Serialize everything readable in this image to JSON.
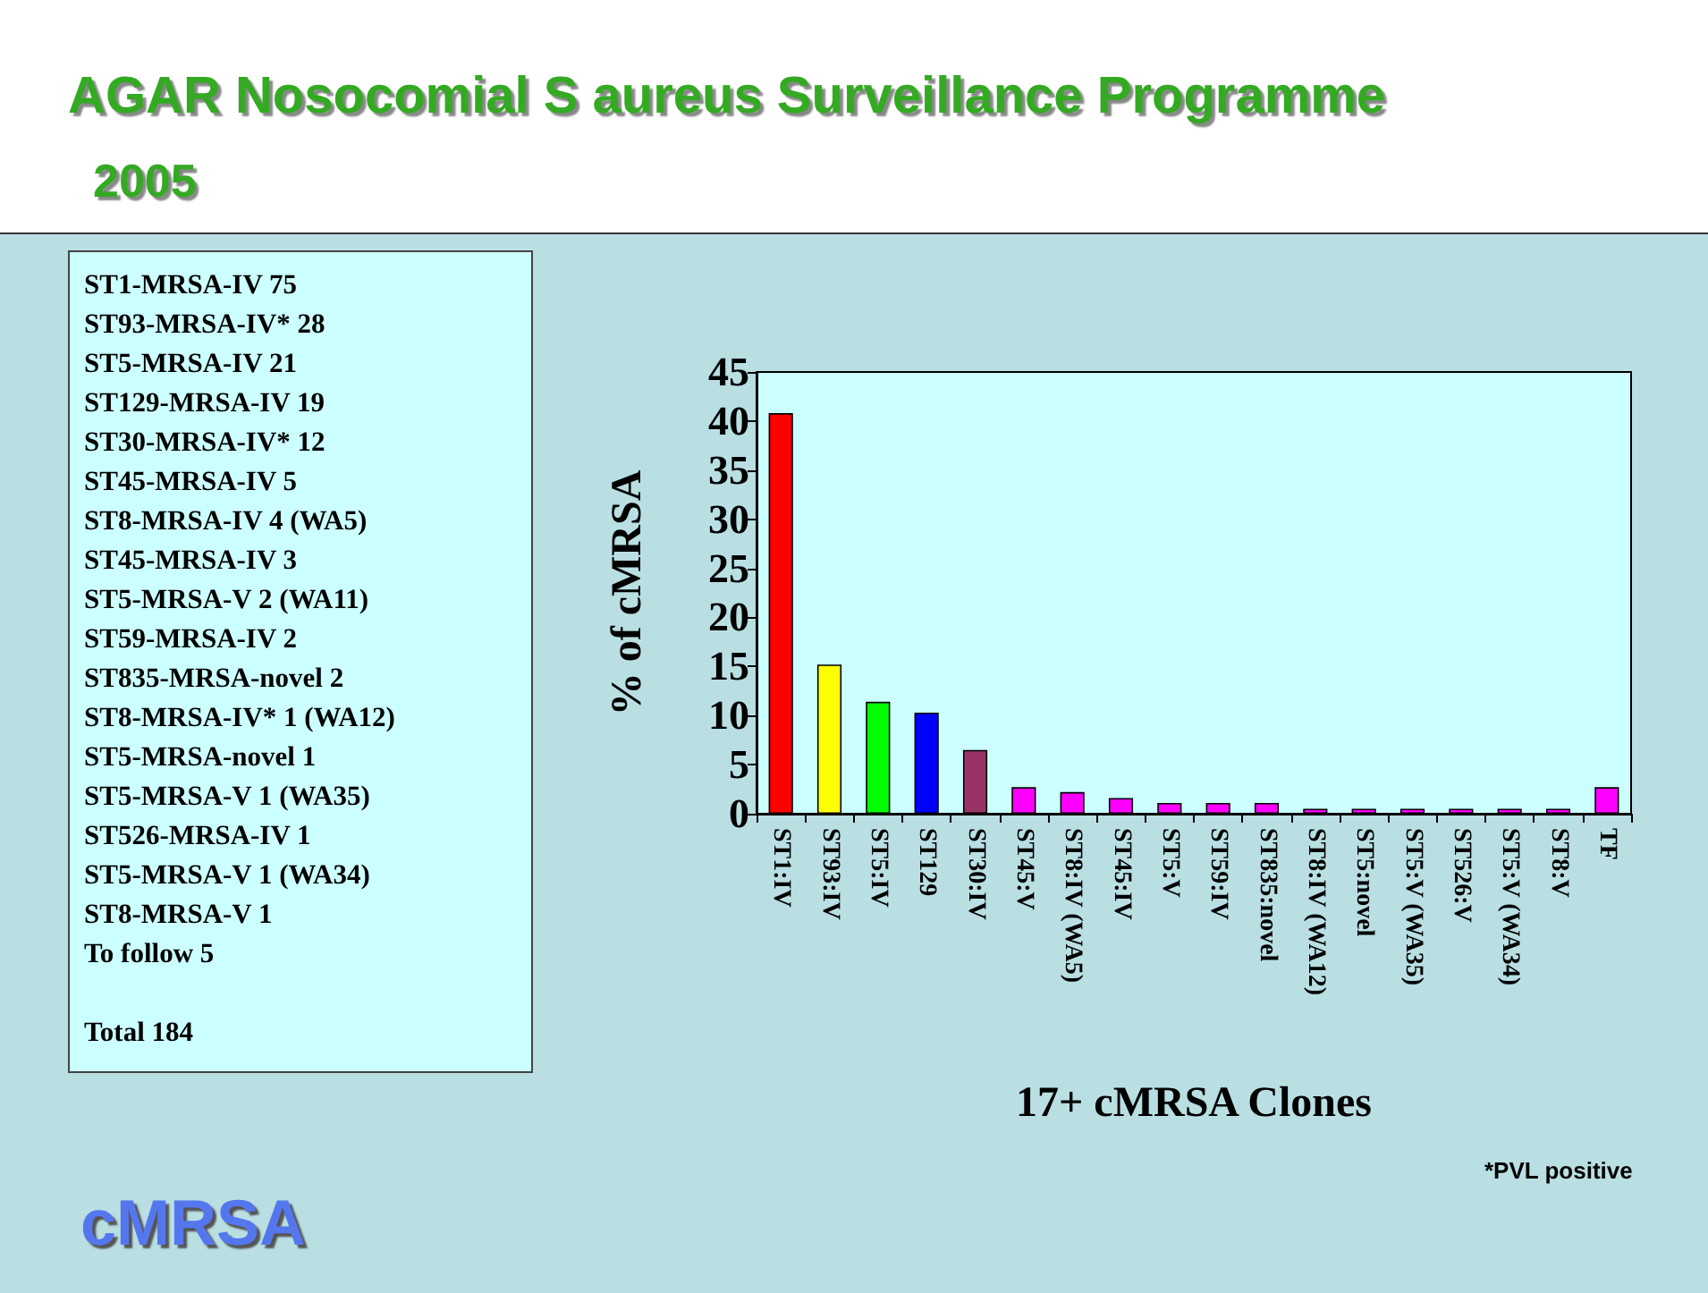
{
  "chart_data": [
    {
      "type": "other",
      "title": "AGAR Nosocomial S aureus Surveillance Programme",
      "subtitle": "2005",
      "annotations": [
        "ST1-MRSA-IV 75",
        "ST93-MRSA-IV* 28",
        "ST5-MRSA-IV 21",
        "ST129-MRSA-IV 19",
        "ST30-MRSA-IV* 12",
        "ST45-MRSA-IV 5",
        "ST8-MRSA-IV 4 (WA5)",
        "ST45-MRSA-IV 3",
        "ST5-MRSA-V 2 (WA11)",
        "ST59-MRSA-IV 2",
        "ST835-MRSA-novel 2",
        "ST8-MRSA-IV* 1 (WA12)",
        "ST5-MRSA-novel 1",
        "ST5-MRSA-V 1 (WA35)",
        "ST526-MRSA-IV 1",
        "ST5-MRSA-V 1 (WA34)",
        "ST8-MRSA-V 1",
        "To follow 5",
        "Total 184"
      ]
    },
    {
      "type": "bar",
      "xlabel": "17+ cMRSA Clones",
      "ylabel": "% of cMRSA",
      "annotations": [
        "*PVL positive",
        "cMRSA"
      ],
      "categories": [
        "ST1:IV",
        "ST93:IV",
        "ST5:IV",
        "ST129",
        "ST30:IV",
        "ST45:V",
        "ST8:IV (WA5)",
        "ST45:IV",
        "ST5:V",
        "ST59:IV",
        "ST835:novel",
        "ST8:IV (WA12)",
        "ST5:novel",
        "ST5:V (WA35)",
        "ST526:V",
        "ST5:V (WA34)",
        "ST8:V",
        "TF"
      ],
      "values": [
        40.8,
        15.2,
        11.4,
        10.3,
        6.5,
        2.7,
        2.2,
        1.6,
        1.1,
        1.1,
        1.1,
        0.5,
        0.5,
        0.5,
        0.5,
        0.5,
        0.5,
        2.7
      ],
      "colors": [
        "#ff0000",
        "#ffff00",
        "#00ff00",
        "#0000ff",
        "#993366",
        "#ff00ff",
        "#ff00ff",
        "#ff00ff",
        "#ff00ff",
        "#ff00ff",
        "#ff00ff",
        "#ff00ff",
        "#ff00ff",
        "#ff00ff",
        "#ff00ff",
        "#ff00ff",
        "#ff00ff",
        "#ff00ff"
      ],
      "ylim": [
        0,
        45
      ],
      "yticks": [
        0,
        5,
        10,
        15,
        20,
        25,
        30,
        35,
        40,
        45
      ],
      "grid": false
    }
  ]
}
